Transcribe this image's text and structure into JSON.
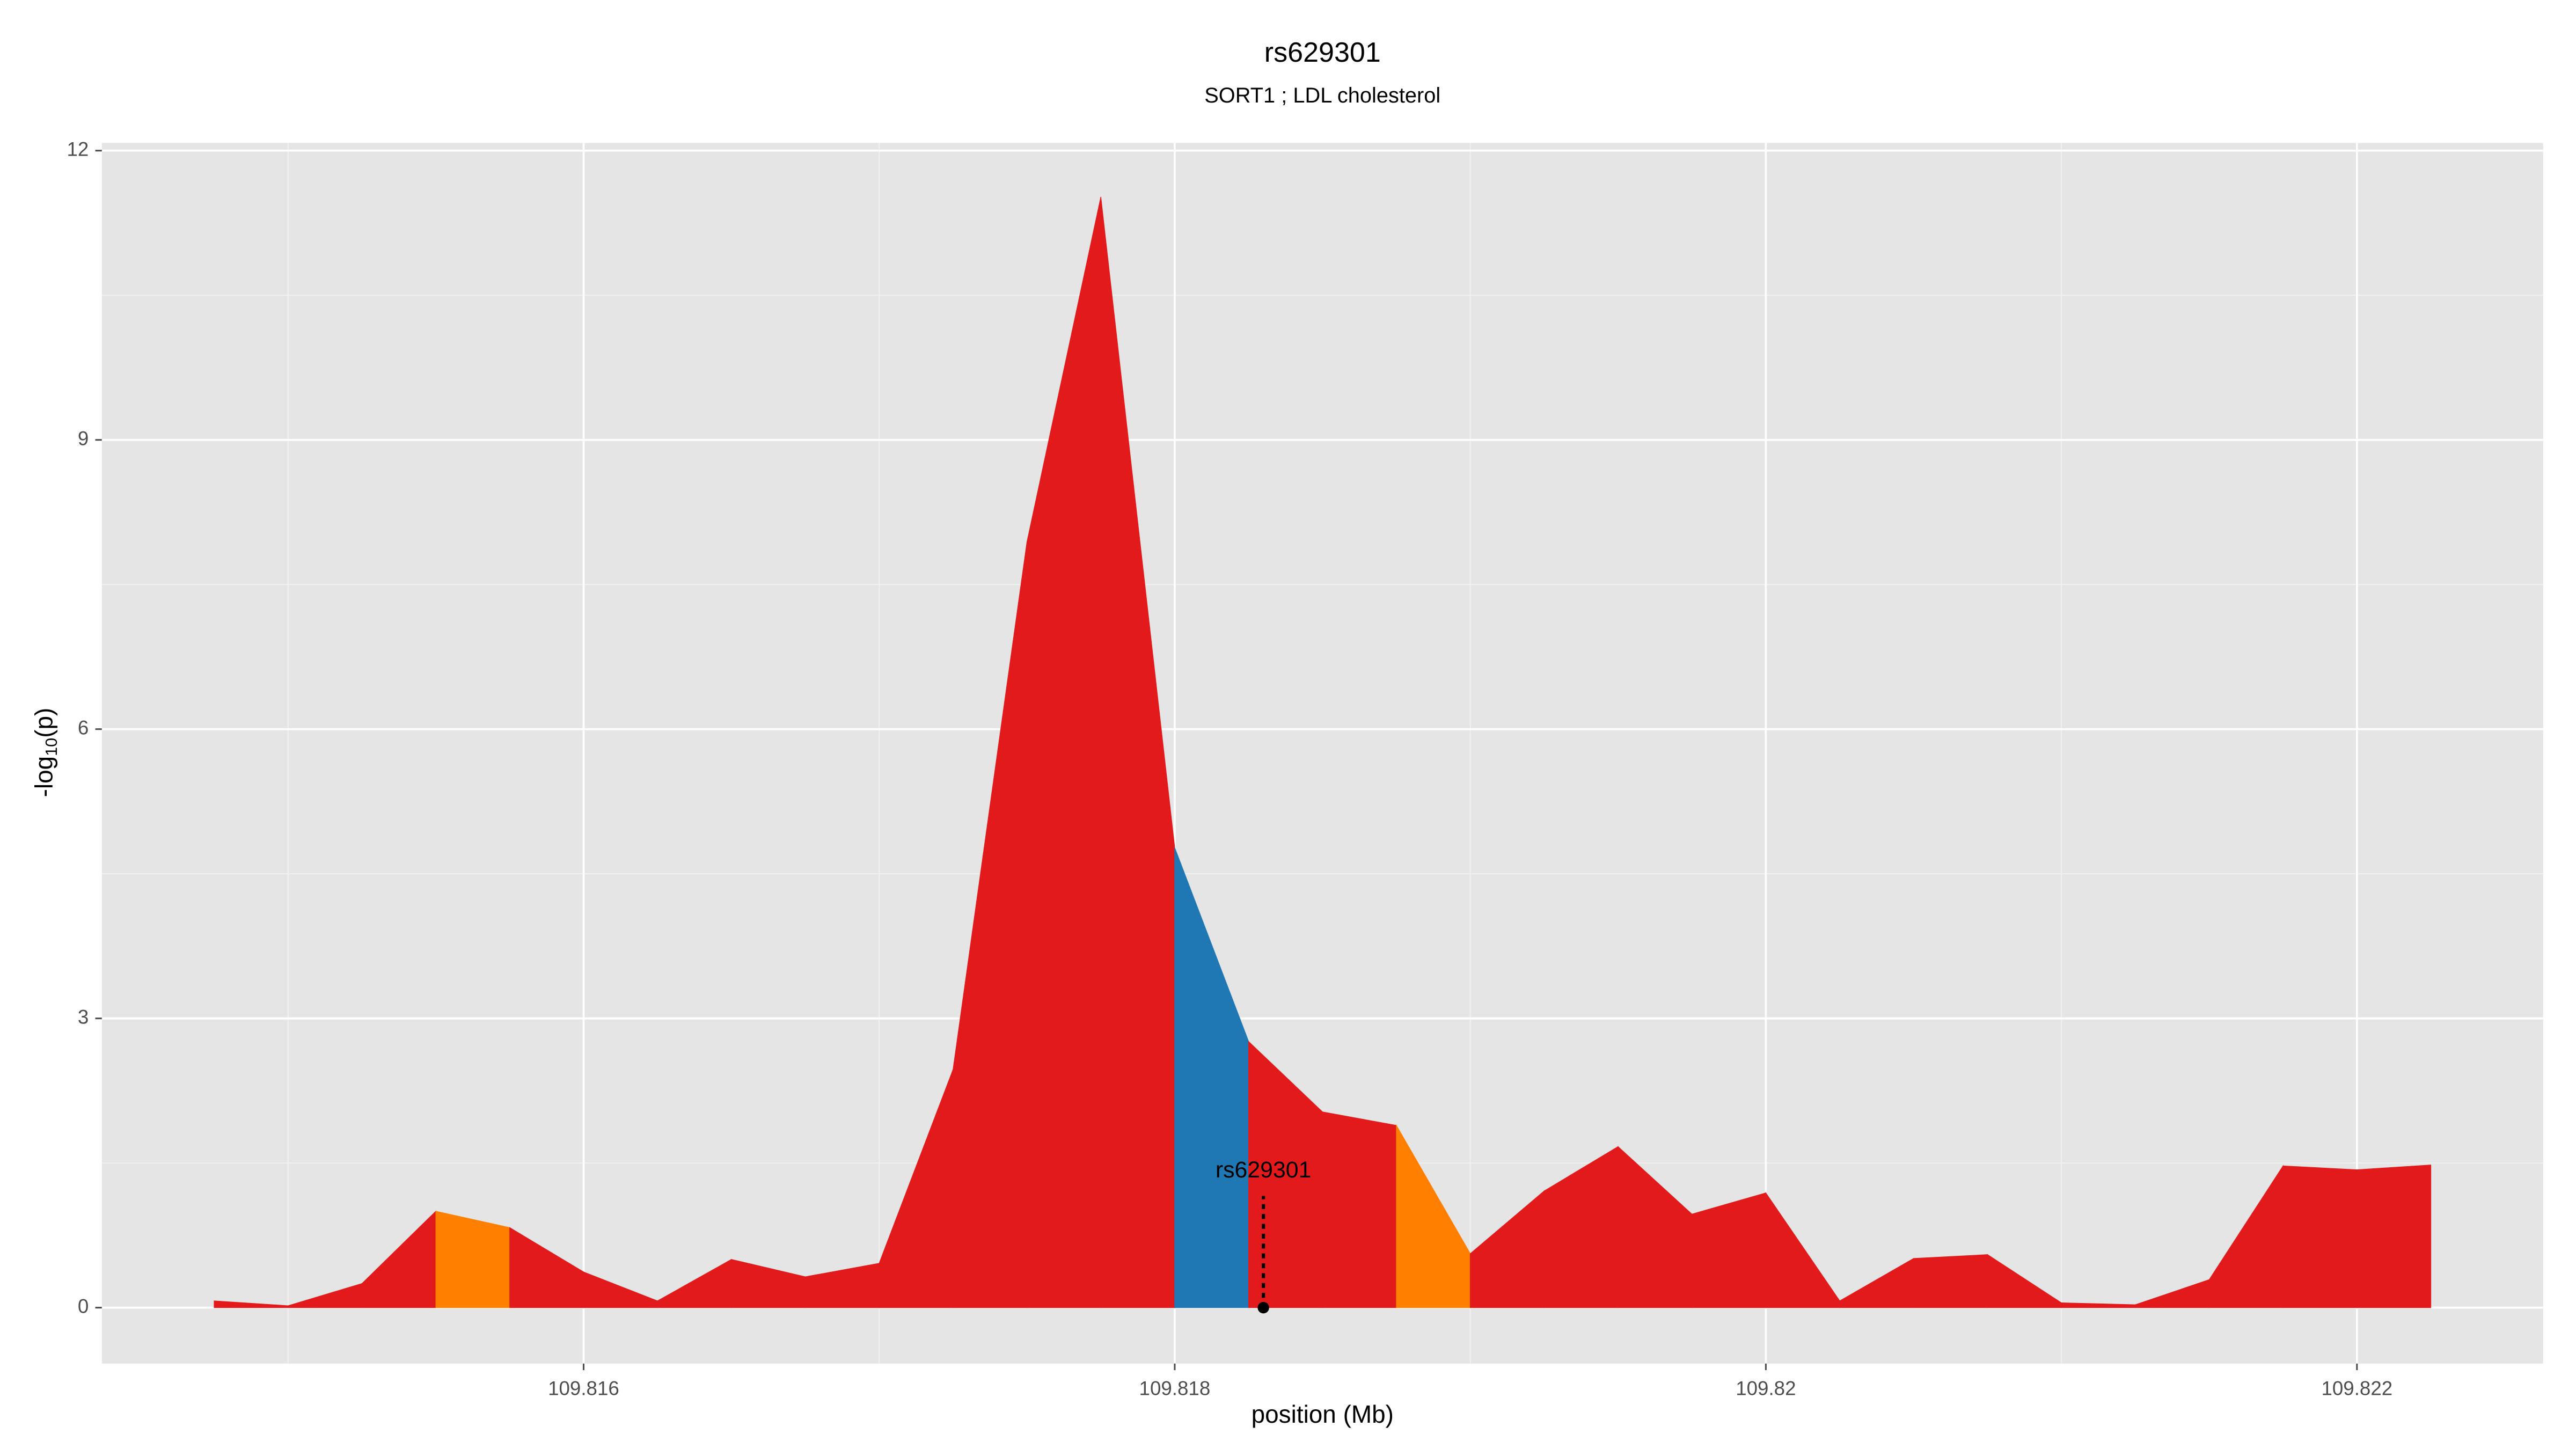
{
  "chart_data": {
    "type": "area",
    "title": "rs629301",
    "subtitle": "SORT1 ; LDL cholesterol",
    "xlabel": "position (Mb)",
    "ylabel": [
      "-log",
      "10",
      "(p)"
    ],
    "x": [
      109.81475,
      109.815,
      109.81525,
      109.8155,
      109.81575,
      109.816,
      109.81625,
      109.8165,
      109.81675,
      109.817,
      109.81725,
      109.8175,
      109.81775,
      109.818,
      109.81825,
      109.8185,
      109.81875,
      109.819,
      109.81925,
      109.8195,
      109.81975,
      109.82,
      109.82025,
      109.8205,
      109.82075,
      109.821,
      109.82125,
      109.8215,
      109.82175,
      109.822,
      109.82225
    ],
    "values": [
      0.07,
      0.02,
      0.25,
      1.0,
      0.83,
      0.37,
      0.07,
      0.5,
      0.32,
      0.46,
      2.47,
      7.94,
      11.52,
      4.77,
      2.76,
      2.03,
      1.89,
      0.56,
      1.21,
      1.67,
      0.97,
      1.19,
      0.07,
      0.51,
      0.55,
      0.05,
      0.03,
      0.29,
      1.47,
      1.43,
      1.48
    ],
    "segment_colors": [
      "#e31a1c",
      "#e31a1c",
      "#e31a1c",
      "#ff7f00",
      "#e31a1c",
      "#e31a1c",
      "#e31a1c",
      "#e31a1c",
      "#e31a1c",
      "#e31a1c",
      "#e31a1c",
      "#e31a1c",
      "#e31a1c",
      "#1f78b4",
      "#e31a1c",
      "#e31a1c",
      "#ff7f00",
      "#e31a1c",
      "#e31a1c",
      "#e31a1c",
      "#e31a1c",
      "#e31a1c",
      "#e31a1c",
      "#e31a1c",
      "#e31a1c",
      "#e31a1c",
      "#e31a1c",
      "#e31a1c",
      "#e31a1c",
      "#e31a1c"
    ],
    "annotation": {
      "text": "rs629301",
      "x": 109.8183,
      "y": 0
    },
    "xlim": [
      109.81437,
      109.82263
    ],
    "ylim": [
      -0.58,
      12.08
    ],
    "xticks": [
      109.816,
      109.818,
      109.82,
      109.822
    ],
    "yticks": [
      0,
      3,
      6,
      9,
      12
    ],
    "xminor": [
      109.815,
      109.817,
      109.819,
      109.821
    ],
    "yminor": [
      1.5,
      4.5,
      7.5,
      10.5
    ],
    "grid": true
  }
}
